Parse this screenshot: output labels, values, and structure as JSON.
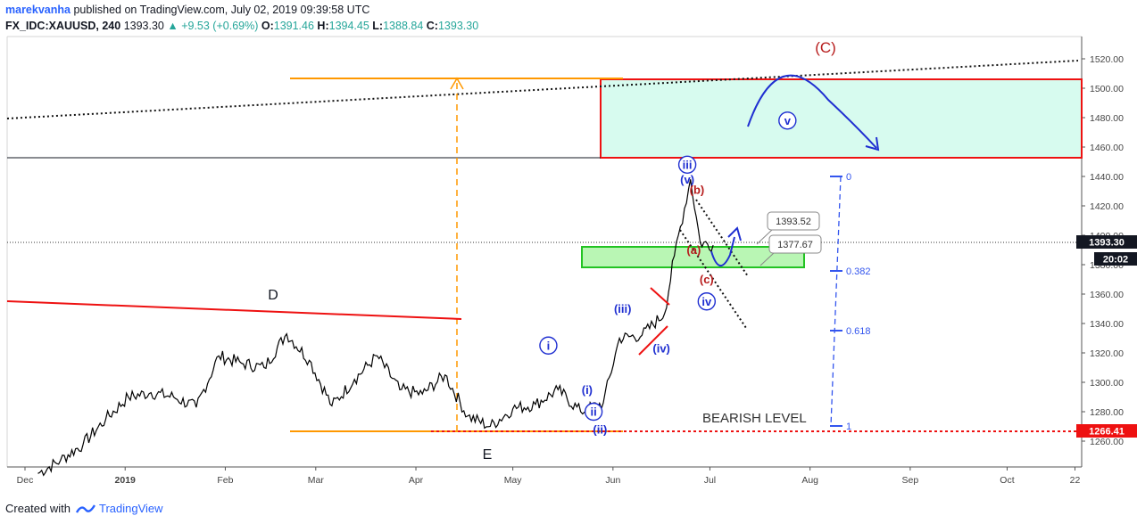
{
  "header": {
    "author": "marekvanha",
    "published_text": "published on TradingView.com, July 02, 2019 09:39:58 UTC",
    "symbol": "FX_IDC:XAUUSD, 240",
    "last": "1393.30",
    "change": "▲ +9.53 (+0.69%)",
    "o_label": "O:",
    "o": "1391.46",
    "h_label": "H:",
    "h": "1394.45",
    "l_label": "L:",
    "l": "1388.84",
    "c_label": "C:",
    "c": "1393.30"
  },
  "footer": {
    "created_with": "Created with",
    "brand": "TradingView"
  },
  "price_badges": {
    "current": "1393.30",
    "timer": "20:02",
    "bearish_level": "1266.41"
  },
  "annotations": {
    "wave_C": "(C)",
    "wave_D": "D",
    "wave_E": "E",
    "bearish_level": "BEARISH LEVEL",
    "callout_high": "1393.52",
    "callout_low": "1377.67",
    "fib_0": "0",
    "fib_382": "0.382",
    "fib_618": "0.618",
    "fib_1": "1"
  },
  "colors": {
    "price": "#000000",
    "red": "#ee1111",
    "orange": "#ff9800",
    "blue": "#1f2fd1",
    "darkred": "#b71c1c",
    "target_fill": "#d7fbef",
    "support_fill": "#b9f6b4",
    "support_stroke": "#22c322",
    "fib": "#3355ee"
  },
  "chart_data": {
    "type": "line",
    "title": "",
    "ylabel": "",
    "x_ticks": [
      "Dec",
      "2019",
      "Feb",
      "Mar",
      "Apr",
      "May",
      "Jun",
      "Jul",
      "Aug",
      "Sep",
      "Oct",
      "22"
    ],
    "y_ticks": [
      1260,
      1280,
      1300,
      1320,
      1340,
      1360,
      1380,
      1400,
      1420,
      1440,
      1460,
      1480,
      1500,
      1520
    ],
    "ylim": [
      1248,
      1535
    ],
    "series": [
      {
        "name": "",
        "x": [
          "2018-12-05",
          "2018-12-12",
          "2018-12-19",
          "2018-12-26",
          "2019-01-02",
          "2019-01-09",
          "2019-01-16",
          "2019-01-23",
          "2019-01-30",
          "2019-02-06",
          "2019-02-13",
          "2019-02-20",
          "2019-02-27",
          "2019-03-06",
          "2019-03-13",
          "2019-03-20",
          "2019-03-27",
          "2019-04-03",
          "2019-04-10",
          "2019-04-17",
          "2019-04-24",
          "2019-05-01",
          "2019-05-08",
          "2019-05-15",
          "2019-05-22",
          "2019-05-29",
          "2019-06-03",
          "2019-06-10",
          "2019-06-17",
          "2019-06-20",
          "2019-06-25",
          "2019-06-28",
          "2019-07-02"
        ],
        "values": [
          1238,
          1247,
          1258,
          1275,
          1290,
          1293,
          1290,
          1283,
          1318,
          1313,
          1310,
          1333,
          1315,
          1284,
          1302,
          1318,
          1295,
          1292,
          1305,
          1277,
          1270,
          1282,
          1285,
          1295,
          1280,
          1286,
          1330,
          1332,
          1347,
          1386,
          1438,
          1395,
          1393.3
        ]
      }
    ],
    "waves": [
      {
        "label": "D",
        "x": "2019-02-20",
        "y": 1347
      },
      {
        "label": "E",
        "x": "2019-05-02",
        "y": 1267
      },
      {
        "label": "i",
        "x": "2019-05-12",
        "y": 1325
      },
      {
        "label": "ii",
        "x": "2019-05-26",
        "y": 1280
      },
      {
        "label": "(i)",
        "x": "2019-05-24",
        "y": 1295
      },
      {
        "label": "(ii)",
        "x": "2019-05-28",
        "y": 1268
      },
      {
        "label": "(iii)",
        "x": "2019-06-04",
        "y": 1350
      },
      {
        "label": "(iv)",
        "x": "2019-06-16",
        "y": 1323
      },
      {
        "label": "iii",
        "x": "2019-06-24",
        "y": 1448
      },
      {
        "label": "(v)",
        "x": "2019-06-24",
        "y": 1438
      },
      {
        "label": "(a)",
        "x": "2019-06-26",
        "y": 1390
      },
      {
        "label": "(b)",
        "x": "2019-06-27",
        "y": 1431
      },
      {
        "label": "(c)",
        "x": "2019-06-30",
        "y": 1370
      },
      {
        "label": "iv",
        "x": "2019-06-30",
        "y": 1355
      },
      {
        "label": "v",
        "x": "2019-07-25",
        "y": 1478
      },
      {
        "label": "(C)",
        "x": "2019-08-01",
        "y": 1530
      }
    ],
    "zones": [
      {
        "name": "",
        "from": 1451,
        "to": 1505
      },
      {
        "name": "",
        "from": 1376,
        "to": 1391
      }
    ],
    "bearish_level": 1266.41,
    "last_price": 1393.3,
    "grid": false
  }
}
